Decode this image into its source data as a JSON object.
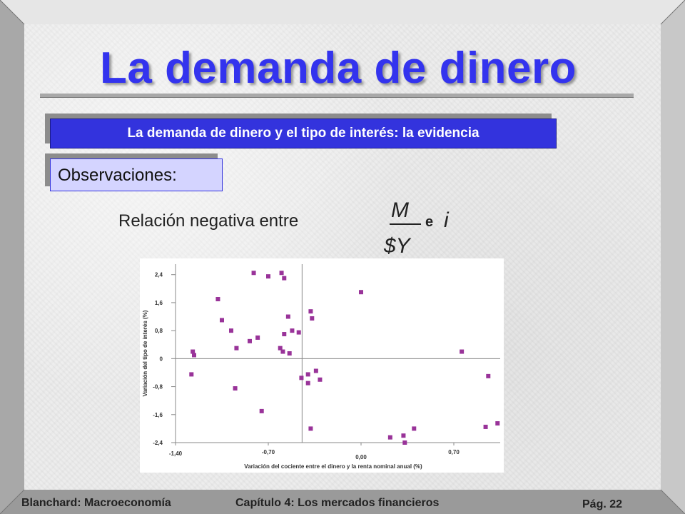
{
  "slide": {
    "title": "La demanda de dinero",
    "section_heading": "La demanda de dinero y el tipo de interés: la evidencia",
    "observations_label": "Observaciones:",
    "relation_text": "Relación negativa entre",
    "fraction_numerator": "M",
    "fraction_denominator": "$Y",
    "conjunction": "e",
    "interest_symbol": "i"
  },
  "colors": {
    "title": "#3333ee",
    "heading_box": "#3333dd",
    "observations_box": "#d4d4ff",
    "marker": "#993399"
  },
  "footer": {
    "left": "Blanchard: Macroeconomía",
    "center": "Capítulo 4: Los mercados financieros",
    "page": "Pág. 22"
  },
  "chart_data": {
    "type": "scatter",
    "xlabel": "Variación del cociente entre el dinero y la renta nominal anual (%)",
    "ylabel": "Variación del tipo de interés (%)",
    "xlim": [
      -1.4,
      1.05
    ],
    "ylim": [
      -2.4,
      2.7
    ],
    "x_ticks": [
      "-1,40",
      "-0,70",
      "0,00",
      "0,70"
    ],
    "x_tick_values": [
      -1.4,
      -0.7,
      0.0,
      0.7
    ],
    "y_ticks": [
      "2,4",
      "1,6",
      "0,8",
      "0",
      "-0,8",
      "-1,6",
      "-2,4"
    ],
    "y_tick_values": [
      2.4,
      1.6,
      0.8,
      0.0,
      -0.8,
      -1.6,
      -2.4
    ],
    "grid": false,
    "points": [
      [
        -0.81,
        2.45
      ],
      [
        -0.6,
        2.45
      ],
      [
        -0.7,
        2.35
      ],
      [
        -0.58,
        2.3
      ],
      [
        -1.08,
        1.7
      ],
      [
        0.0,
        1.9
      ],
      [
        -0.38,
        1.35
      ],
      [
        -0.55,
        1.2
      ],
      [
        -0.37,
        1.15
      ],
      [
        -1.05,
        1.1
      ],
      [
        -0.98,
        0.8
      ],
      [
        -0.52,
        0.8
      ],
      [
        -0.47,
        0.75
      ],
      [
        -0.58,
        0.7
      ],
      [
        -0.78,
        0.6
      ],
      [
        -0.84,
        0.5
      ],
      [
        -0.94,
        0.3
      ],
      [
        -0.61,
        0.3
      ],
      [
        -0.59,
        0.2
      ],
      [
        -0.54,
        0.15
      ],
      [
        -1.27,
        0.2
      ],
      [
        -1.26,
        0.1
      ],
      [
        0.76,
        0.2
      ],
      [
        -1.28,
        -0.45
      ],
      [
        -0.34,
        -0.35
      ],
      [
        -0.4,
        -0.45
      ],
      [
        -0.45,
        -0.55
      ],
      [
        -0.31,
        -0.6
      ],
      [
        -0.4,
        -0.7
      ],
      [
        0.96,
        -0.5
      ],
      [
        -0.95,
        -0.85
      ],
      [
        -0.75,
        -1.5
      ],
      [
        -0.38,
        -2.0
      ],
      [
        0.22,
        -2.25
      ],
      [
        0.32,
        -2.2
      ],
      [
        0.4,
        -2.0
      ],
      [
        0.33,
        -2.4
      ],
      [
        0.94,
        -1.95
      ],
      [
        1.03,
        -1.85
      ]
    ]
  }
}
